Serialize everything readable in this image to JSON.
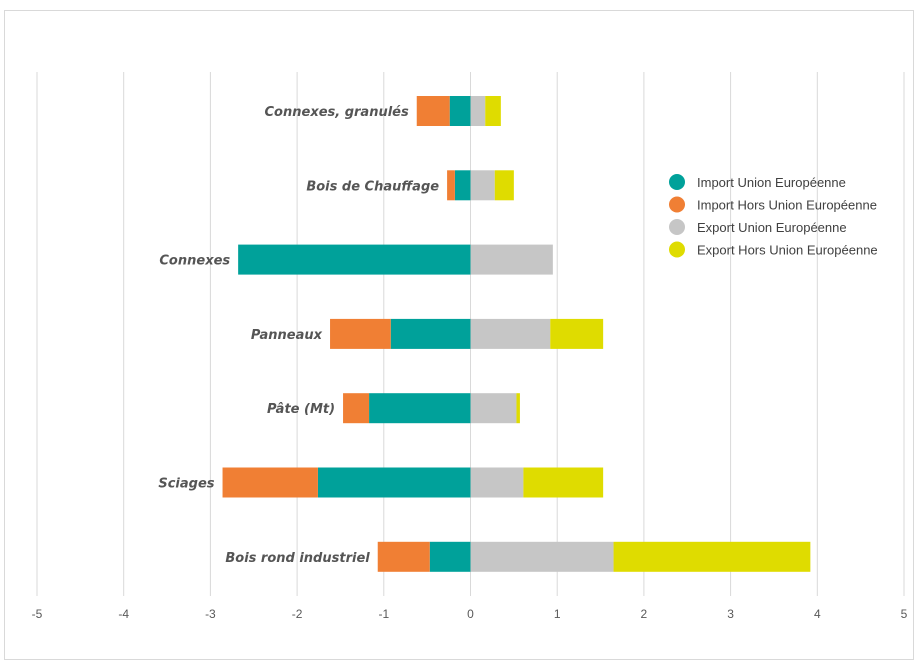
{
  "chart_data": {
    "type": "bar",
    "orientation": "horizontal",
    "stacked": true,
    "categories": [
      "Connexes, granulés",
      "Bois de Chauffage",
      "Connexes",
      "Panneaux",
      "Pâte (Mt)",
      "Sciages",
      "Bois rond industriel"
    ],
    "series": [
      {
        "name": "Import Union Européenne",
        "color": "#00a19a",
        "values": [
          -0.24,
          -0.18,
          -2.68,
          -0.92,
          -1.17,
          -1.76,
          -0.47
        ]
      },
      {
        "name": "Import Hors Union Européenne",
        "color": "#f07f34",
        "values": [
          -0.38,
          -0.09,
          0,
          -0.7,
          -0.3,
          -1.1,
          -0.6
        ]
      },
      {
        "name": "Export Union Européenne",
        "color": "#c6c6c6",
        "values": [
          0.17,
          0.28,
          0.95,
          0.92,
          0.53,
          0.61,
          1.65
        ]
      },
      {
        "name": "Export Hors Union Européenne",
        "color": "#dfdc00",
        "values": [
          0.18,
          0.22,
          0,
          0.61,
          0.04,
          0.92,
          2.27
        ]
      }
    ],
    "x_ticks": [
      "-5",
      "-4",
      "-3",
      "-2",
      "-1",
      "0",
      "1",
      "2",
      "3",
      "4",
      "5"
    ],
    "xlim": [
      -5,
      5
    ],
    "grid": true,
    "legend_position": "right",
    "title": "",
    "xlabel": "",
    "ylabel": ""
  }
}
